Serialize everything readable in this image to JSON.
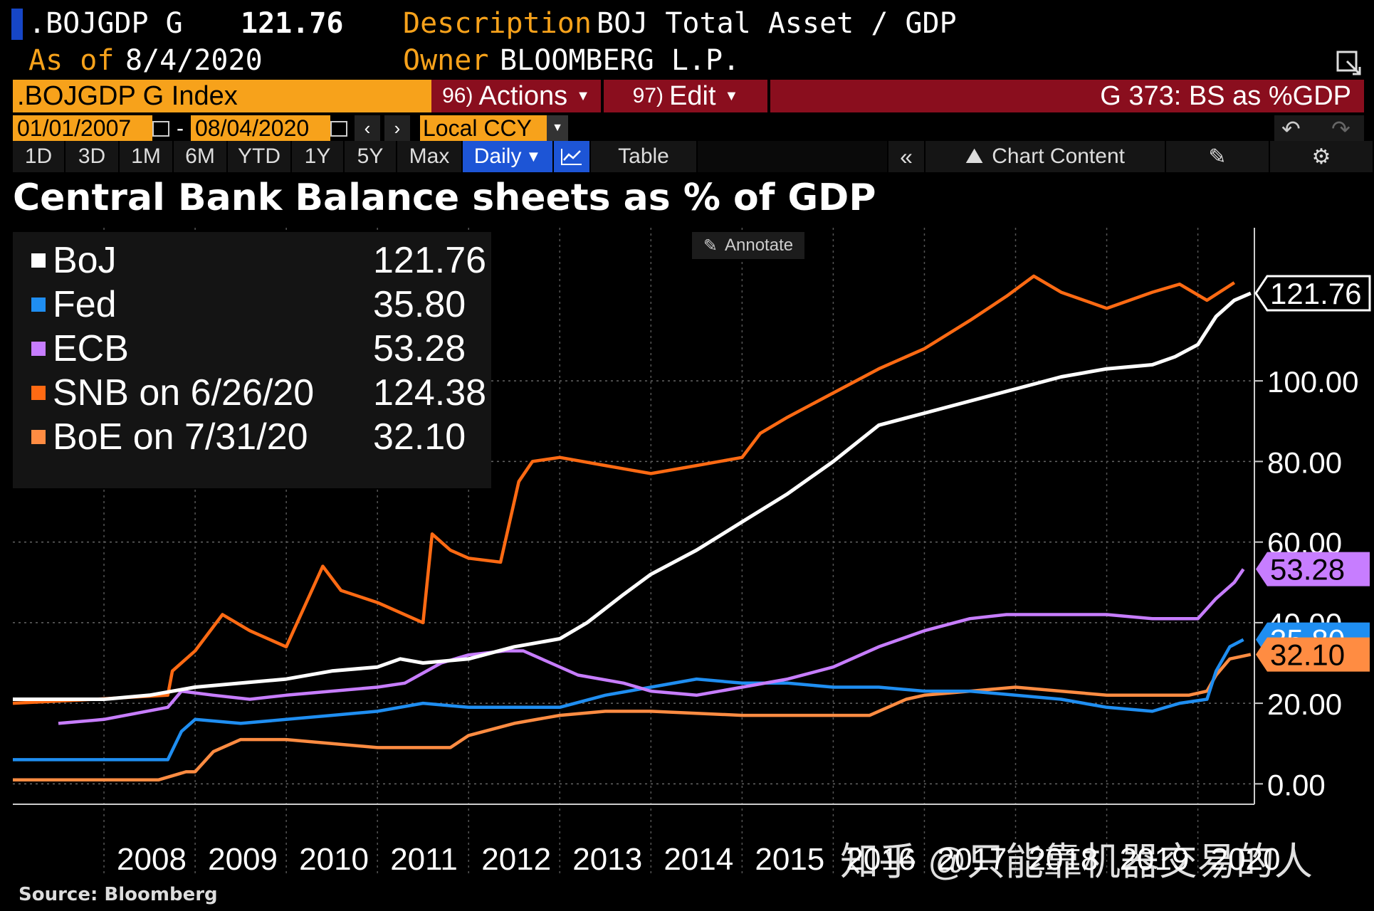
{
  "header": {
    "ticker": ".BOJGDP G",
    "last_value": "121.76",
    "desc_label": "Description",
    "desc_value": "BOJ Total Asset / GDP",
    "asof_label": "As of",
    "asof_value": "8/4/2020",
    "owner_label": "Owner",
    "owner_value": "BLOOMBERG L.P."
  },
  "toolbar": {
    "index": ".BOJGDP G Index",
    "actions_num": "96)",
    "actions": "Actions",
    "edit_num": "97)",
    "edit": "Edit",
    "function": "G 373: BS as %GDP",
    "start_date": "01/01/2007",
    "end_date": "08/04/2020",
    "currency": "Local CCY",
    "ranges": [
      "1D",
      "3D",
      "1M",
      "6M",
      "YTD",
      "1Y",
      "5Y",
      "Max"
    ],
    "frequency": "Daily",
    "table": "Table",
    "chart_content": "Chart Content"
  },
  "annotate": "Annotate",
  "source": "Source: Bloomberg",
  "watermark": "知乎 @只能靠机器交易的人",
  "colors": {
    "boj": "#ffffff",
    "fed": "#1f8ef1",
    "ecb": "#c77dff",
    "snb": "#ff6a13",
    "boe": "#ff8c42",
    "accent": "#f7a21b",
    "redbar": "#8a0e1e"
  },
  "chart_data": {
    "type": "line",
    "title": "Central Bank Balance sheets as % of GDP",
    "xlabel": "",
    "ylabel": "",
    "xlim": [
      2007.0,
      2020.62
    ],
    "ylim": [
      -4,
      138
    ],
    "y_ticks": [
      "0.00",
      "20.00",
      "40.00",
      "60.00",
      "80.00",
      "100.00"
    ],
    "y_tick_values": [
      0,
      20,
      40,
      60,
      80,
      100
    ],
    "x_tick_labels": [
      "2008",
      "2009",
      "2010",
      "2011",
      "2012",
      "2013",
      "2014",
      "2015",
      "2016",
      "2017",
      "2018",
      "2019",
      "2020"
    ],
    "x_tick_values": [
      2008,
      2009,
      2010,
      2011,
      2012,
      2013,
      2014,
      2015,
      2016,
      2017,
      2018,
      2019,
      2020
    ],
    "legend": [
      {
        "key": "boj",
        "name": "BoJ",
        "value": "121.76"
      },
      {
        "key": "fed",
        "name": "Fed",
        "value": "35.80"
      },
      {
        "key": "ecb",
        "name": "ECB",
        "value": "53.28"
      },
      {
        "key": "snb",
        "name": "SNB on 6/26/20",
        "value": "124.38"
      },
      {
        "key": "boe",
        "name": "BoE on 7/31/20",
        "value": "32.10"
      }
    ],
    "end_labels": [
      {
        "key": "boj",
        "label": "121.76",
        "y": 121.76
      },
      {
        "key": "ecb",
        "label": "53.28",
        "y": 53.28
      },
      {
        "key": "fed",
        "label": "35.80",
        "y": 35.8
      },
      {
        "key": "boe",
        "label": "32.10",
        "y": 32.1
      }
    ],
    "series": [
      {
        "key": "boj",
        "name": "BoJ",
        "color": "#ffffff",
        "points": [
          [
            2007.0,
            21
          ],
          [
            2007.5,
            21
          ],
          [
            2008.0,
            21
          ],
          [
            2008.5,
            22
          ],
          [
            2009.0,
            24
          ],
          [
            2009.5,
            25
          ],
          [
            2010.0,
            26
          ],
          [
            2010.5,
            28
          ],
          [
            2011.0,
            29
          ],
          [
            2011.25,
            31
          ],
          [
            2011.5,
            30
          ],
          [
            2012.0,
            31
          ],
          [
            2012.5,
            34
          ],
          [
            2013.0,
            36
          ],
          [
            2013.3,
            40
          ],
          [
            2013.7,
            47
          ],
          [
            2014.0,
            52
          ],
          [
            2014.5,
            58
          ],
          [
            2015.0,
            65
          ],
          [
            2015.5,
            72
          ],
          [
            2016.0,
            80
          ],
          [
            2016.5,
            89
          ],
          [
            2017.0,
            92
          ],
          [
            2017.5,
            95
          ],
          [
            2018.0,
            98
          ],
          [
            2018.5,
            101
          ],
          [
            2019.0,
            103
          ],
          [
            2019.5,
            104
          ],
          [
            2019.75,
            106
          ],
          [
            2020.0,
            109
          ],
          [
            2020.2,
            116
          ],
          [
            2020.4,
            120
          ],
          [
            2020.58,
            121.76
          ]
        ]
      },
      {
        "key": "snb",
        "name": "SNB on 6/26/20",
        "color": "#ff6a13",
        "points": [
          [
            2007.0,
            20
          ],
          [
            2007.9,
            21
          ],
          [
            2008.7,
            22
          ],
          [
            2008.75,
            28
          ],
          [
            2009.0,
            33
          ],
          [
            2009.3,
            42
          ],
          [
            2009.6,
            38
          ],
          [
            2010.0,
            34
          ],
          [
            2010.4,
            54
          ],
          [
            2010.6,
            48
          ],
          [
            2011.0,
            45
          ],
          [
            2011.5,
            40
          ],
          [
            2011.6,
            62
          ],
          [
            2011.8,
            58
          ],
          [
            2012.0,
            56
          ],
          [
            2012.35,
            55
          ],
          [
            2012.45,
            65
          ],
          [
            2012.55,
            75
          ],
          [
            2012.7,
            80
          ],
          [
            2013.0,
            81
          ],
          [
            2013.5,
            79
          ],
          [
            2014.0,
            77
          ],
          [
            2014.5,
            79
          ],
          [
            2015.0,
            81
          ],
          [
            2015.2,
            87
          ],
          [
            2015.5,
            91
          ],
          [
            2016.0,
            97
          ],
          [
            2016.5,
            103
          ],
          [
            2017.0,
            108
          ],
          [
            2017.5,
            115
          ],
          [
            2017.9,
            121
          ],
          [
            2018.2,
            126
          ],
          [
            2018.5,
            122
          ],
          [
            2019.0,
            118
          ],
          [
            2019.5,
            122
          ],
          [
            2019.8,
            124
          ],
          [
            2020.1,
            120
          ],
          [
            2020.4,
            124.38
          ]
        ]
      },
      {
        "key": "ecb",
        "name": "ECB",
        "color": "#c77dff",
        "points": [
          [
            2007.5,
            15
          ],
          [
            2008.0,
            16
          ],
          [
            2008.7,
            19
          ],
          [
            2008.85,
            23
          ],
          [
            2009.2,
            22
          ],
          [
            2009.6,
            21
          ],
          [
            2010.0,
            22
          ],
          [
            2010.5,
            23
          ],
          [
            2011.0,
            24
          ],
          [
            2011.3,
            25
          ],
          [
            2011.7,
            30
          ],
          [
            2012.0,
            32
          ],
          [
            2012.4,
            33
          ],
          [
            2012.6,
            33
          ],
          [
            2012.9,
            30
          ],
          [
            2013.2,
            27
          ],
          [
            2013.7,
            25
          ],
          [
            2014.0,
            23
          ],
          [
            2014.5,
            22
          ],
          [
            2015.0,
            24
          ],
          [
            2015.5,
            26
          ],
          [
            2016.0,
            29
          ],
          [
            2016.5,
            34
          ],
          [
            2017.0,
            38
          ],
          [
            2017.5,
            41
          ],
          [
            2017.9,
            42
          ],
          [
            2018.3,
            42
          ],
          [
            2019.0,
            42
          ],
          [
            2019.5,
            41
          ],
          [
            2019.9,
            41
          ],
          [
            2020.0,
            41
          ],
          [
            2020.2,
            46
          ],
          [
            2020.4,
            50
          ],
          [
            2020.5,
            53.28
          ]
        ]
      },
      {
        "key": "fed",
        "name": "Fed",
        "color": "#1f8ef1",
        "points": [
          [
            2007.0,
            6
          ],
          [
            2008.0,
            6
          ],
          [
            2008.7,
            6
          ],
          [
            2008.85,
            13
          ],
          [
            2009.0,
            16
          ],
          [
            2009.5,
            15
          ],
          [
            2010.0,
            16
          ],
          [
            2010.5,
            17
          ],
          [
            2011.0,
            18
          ],
          [
            2011.5,
            20
          ],
          [
            2012.0,
            19
          ],
          [
            2012.5,
            19
          ],
          [
            2013.0,
            19
          ],
          [
            2013.5,
            22
          ],
          [
            2014.0,
            24
          ],
          [
            2014.5,
            26
          ],
          [
            2015.0,
            25
          ],
          [
            2015.5,
            25
          ],
          [
            2016.0,
            24
          ],
          [
            2016.5,
            24
          ],
          [
            2017.0,
            23
          ],
          [
            2017.5,
            23
          ],
          [
            2018.0,
            22
          ],
          [
            2018.5,
            21
          ],
          [
            2019.0,
            19
          ],
          [
            2019.5,
            18
          ],
          [
            2019.8,
            20
          ],
          [
            2020.1,
            21
          ],
          [
            2020.2,
            28
          ],
          [
            2020.35,
            34
          ],
          [
            2020.5,
            35.8
          ]
        ]
      },
      {
        "key": "boe",
        "name": "BoE on 7/31/20",
        "color": "#ff8c42",
        "points": [
          [
            2007.0,
            1
          ],
          [
            2008.0,
            1
          ],
          [
            2008.6,
            1
          ],
          [
            2008.9,
            3
          ],
          [
            2009.0,
            3
          ],
          [
            2009.2,
            8
          ],
          [
            2009.5,
            11
          ],
          [
            2010.0,
            11
          ],
          [
            2010.5,
            10
          ],
          [
            2011.0,
            9
          ],
          [
            2011.5,
            9
          ],
          [
            2011.8,
            9
          ],
          [
            2012.0,
            12
          ],
          [
            2012.5,
            15
          ],
          [
            2013.0,
            17
          ],
          [
            2013.5,
            18
          ],
          [
            2014.0,
            18
          ],
          [
            2015.0,
            17
          ],
          [
            2016.0,
            17
          ],
          [
            2016.4,
            17
          ],
          [
            2016.8,
            21
          ],
          [
            2017.0,
            22
          ],
          [
            2017.5,
            23
          ],
          [
            2018.0,
            24
          ],
          [
            2018.5,
            23
          ],
          [
            2019.0,
            22
          ],
          [
            2019.5,
            22
          ],
          [
            2019.9,
            22
          ],
          [
            2020.1,
            23
          ],
          [
            2020.2,
            27
          ],
          [
            2020.35,
            31
          ],
          [
            2020.58,
            32.1
          ]
        ]
      }
    ]
  }
}
